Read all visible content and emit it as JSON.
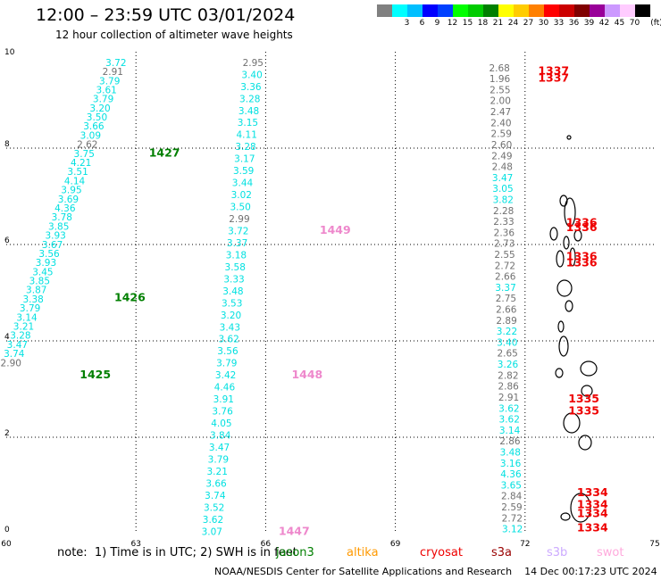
{
  "header": {
    "title": "12:00 – 23:59 UTC 03/01/2024",
    "subtitle": "12 hour collection of altimeter wave heights"
  },
  "scale": {
    "unit": "(ft)",
    "bins": [
      {
        "color": "#808080",
        "label": ""
      },
      {
        "color": "#00ffff",
        "label": "3"
      },
      {
        "color": "#00bfff",
        "label": "6"
      },
      {
        "color": "#0000ff",
        "label": "9"
      },
      {
        "color": "#0040ff",
        "label": "12"
      },
      {
        "color": "#00ff00",
        "label": "15"
      },
      {
        "color": "#00cc00",
        "label": "18"
      },
      {
        "color": "#008000",
        "label": "21"
      },
      {
        "color": "#ffff00",
        "label": "24"
      },
      {
        "color": "#ffcc00",
        "label": "27"
      },
      {
        "color": "#ff8000",
        "label": "30"
      },
      {
        "color": "#ff0000",
        "label": "33"
      },
      {
        "color": "#cc0000",
        "label": "36"
      },
      {
        "color": "#800000",
        "label": "39"
      },
      {
        "color": "#990099",
        "label": "42"
      },
      {
        "color": "#cc99ff",
        "label": "45"
      },
      {
        "color": "#ffccff",
        "label": "70"
      },
      {
        "color": "#000000",
        "label": ""
      }
    ]
  },
  "map": {
    "lon_range": [
      60,
      75
    ],
    "lat_range": [
      0,
      10
    ],
    "x_ticks": [
      "60",
      "63",
      "66",
      "69",
      "72",
      "75"
    ],
    "y_ticks": [
      "0",
      "2",
      "4",
      "6",
      "8",
      "10"
    ],
    "colors": {
      "cyan": "#00e0e0",
      "gray": "#707070",
      "green": "#007f00",
      "pink": "#ee88cc",
      "red": "#ee0000"
    },
    "tracks": [
      {
        "name": "track-a",
        "color": "cyan",
        "lat_top": 9.78,
        "lat_bottom": 3.55,
        "lon_top": 62.78,
        "lon_bottom": 60.35,
        "values": [
          "3.72",
          "2.91",
          "3.79",
          "3.61",
          "3.79",
          "3.20",
          "3.50",
          "3.66",
          "3.09",
          "2.62",
          "3.75",
          "4.21",
          "3.51",
          "4.14",
          "3.95",
          "3.69",
          "4.36",
          "3.78",
          "3.85",
          "3.93",
          "3.67",
          "3.56",
          "3.93",
          "3.45",
          "3.85",
          "3.87",
          "3.38",
          "3.79",
          "3.14",
          "3.21",
          "3.28",
          "3.47",
          "3.74",
          "2.90"
        ],
        "gray_idx": [
          1,
          9,
          33
        ]
      },
      {
        "name": "track-b",
        "color": "cyan",
        "lat_top": 9.78,
        "lat_bottom": 0.05,
        "lon_top": 65.95,
        "lon_bottom": 65.0,
        "values": [
          "2.95",
          "3.40",
          "3.36",
          "3.28",
          "3.48",
          "3.15",
          "4.11",
          "3.28",
          "3.17",
          "3.59",
          "3.44",
          "3.02",
          "3.50",
          "2.99",
          "3.72",
          "3.37",
          "3.18",
          "3.58",
          "3.33",
          "3.48",
          "3.53",
          "3.20",
          "3.43",
          "3.62",
          "3.56",
          "3.79",
          "3.42",
          "4.46",
          "3.91",
          "3.76",
          "4.05",
          "3.84",
          "3.47",
          "3.79",
          "3.21",
          "3.66",
          "3.74",
          "3.52",
          "3.62",
          "3.07"
        ],
        "gray_idx": [
          0,
          13
        ]
      },
      {
        "name": "track-c",
        "color": "gray",
        "lat_top": 9.67,
        "lat_bottom": 0.1,
        "lon_top": 71.65,
        "lon_bottom": 71.95,
        "values": [
          "2.68",
          "1.96",
          "2.55",
          "2.00",
          "2.47",
          "2.40",
          "2.59",
          "2.60",
          "2.49",
          "2.48",
          "3.47",
          "3.05",
          "3.82",
          "2.28",
          "2.33",
          "2.36",
          "2.73",
          "2.55",
          "2.72",
          "2.66",
          "3.37",
          "2.75",
          "2.66",
          "2.89",
          "3.22",
          "3.40",
          "2.65",
          "3.26",
          "2.82",
          "2.86",
          "2.91",
          "3.62",
          "3.62",
          "3.14",
          "2.86",
          "3.48",
          "3.16",
          "4.36",
          "3.65",
          "2.84",
          "2.59",
          "2.72",
          "3.12"
        ],
        "cyan_idx": [
          10,
          11,
          12,
          20,
          24,
          25,
          27,
          31,
          32,
          33,
          35,
          36,
          37,
          38,
          42
        ]
      }
    ],
    "stations": [
      {
        "label": "1427",
        "color": "green",
        "lat": 7.9,
        "lon": 63.3
      },
      {
        "label": "1426",
        "color": "green",
        "lat": 4.9,
        "lon": 62.5
      },
      {
        "label": "1425",
        "color": "green",
        "lat": 3.3,
        "lon": 61.7
      },
      {
        "label": "1449",
        "color": "pink",
        "lat": 6.3,
        "lon": 67.25
      },
      {
        "label": "1448",
        "color": "pink",
        "lat": 3.3,
        "lon": 66.6
      },
      {
        "label": "1447",
        "color": "pink",
        "lat": 0.05,
        "lon": 66.3
      },
      {
        "label": "1337",
        "color": "red",
        "lat": 9.6,
        "lon": 72.3
      },
      {
        "label": "1337",
        "color": "red",
        "lat": 9.45,
        "lon": 72.3
      },
      {
        "label": "1336",
        "color": "red",
        "lat": 6.45,
        "lon": 72.95
      },
      {
        "label": "1336",
        "color": "red",
        "lat": 6.35,
        "lon": 72.95
      },
      {
        "label": "1336",
        "color": "red",
        "lat": 5.75,
        "lon": 72.95
      },
      {
        "label": "1336",
        "color": "red",
        "lat": 5.62,
        "lon": 72.95
      },
      {
        "label": "1335",
        "color": "red",
        "lat": 2.8,
        "lon": 73.0
      },
      {
        "label": "1335",
        "color": "red",
        "lat": 2.55,
        "lon": 73.0
      },
      {
        "label": "1334",
        "color": "red",
        "lat": 0.85,
        "lon": 73.2
      },
      {
        "label": "1334",
        "color": "red",
        "lat": 0.6,
        "lon": 73.2
      },
      {
        "label": "1334",
        "color": "red",
        "lat": 0.42,
        "lon": 73.2
      },
      {
        "label": "1334",
        "color": "red",
        "lat": 0.12,
        "lon": 73.2
      }
    ]
  },
  "notes": "note:  1) Time is in UTC; 2) SWH is in feet",
  "legend": [
    {
      "label": "jason3",
      "color": "#007f00"
    },
    {
      "label": "altika",
      "color": "#ff9900"
    },
    {
      "label": "cryosat",
      "color": "#ee0000"
    },
    {
      "label": "s3a",
      "color": "#990000"
    },
    {
      "label": "s3b",
      "color": "#ccaaff"
    },
    {
      "label": "swot",
      "color": "#ffaadd"
    }
  ],
  "footer": "NOAA/NESDIS Center for Satellite Applications and Research    14 Dec 00:17:23 UTC 2024"
}
